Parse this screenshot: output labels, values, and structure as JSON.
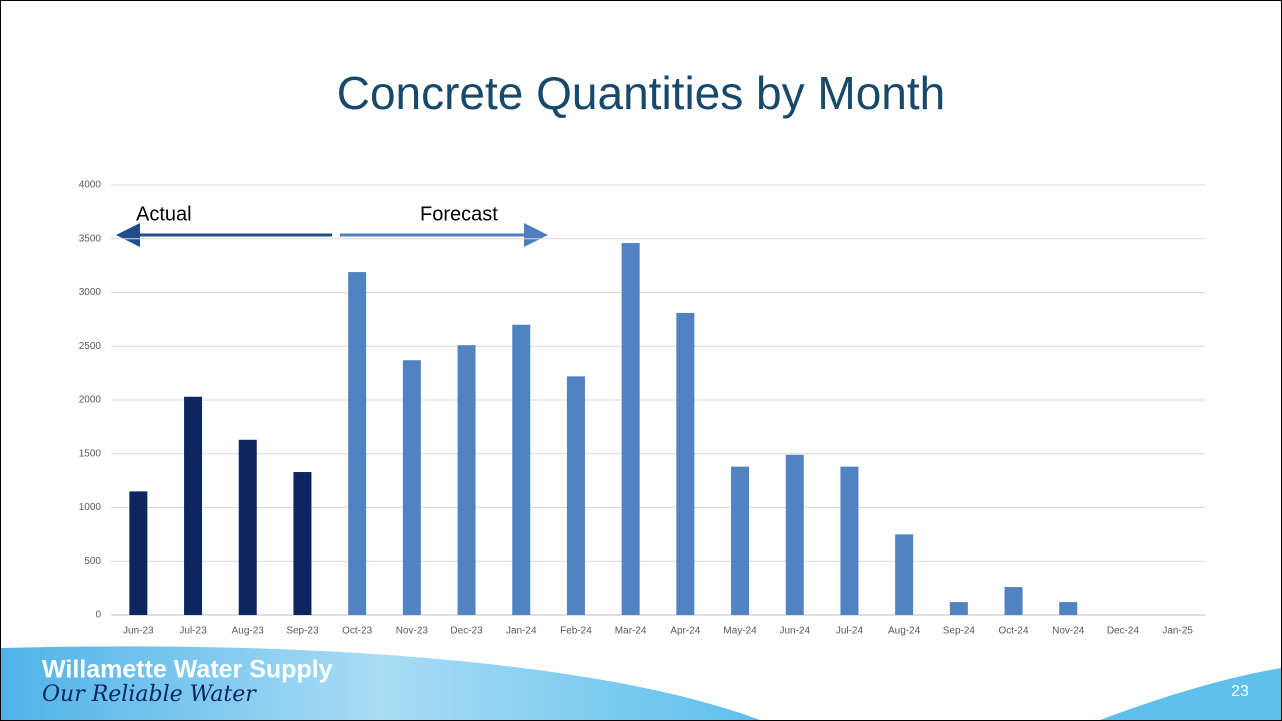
{
  "chart_data": {
    "type": "bar",
    "title": "Concrete Quantities by Month",
    "categories": [
      "Jun-23",
      "Jul-23",
      "Aug-23",
      "Sep-23",
      "Oct-23",
      "Nov-23",
      "Dec-23",
      "Jan-24",
      "Feb-24",
      "Mar-24",
      "Apr-24",
      "May-24",
      "Jun-24",
      "Jul-24",
      "Aug-24",
      "Sep-24",
      "Oct-24",
      "Nov-24",
      "Dec-24",
      "Jan-25"
    ],
    "series": [
      {
        "name": "Actual",
        "color": "#0d2660",
        "values": [
          1150,
          2030,
          1630,
          1330,
          null,
          null,
          null,
          null,
          null,
          null,
          null,
          null,
          null,
          null,
          null,
          null,
          null,
          null,
          null,
          null
        ]
      },
      {
        "name": "Forecast",
        "color": "#5182c2",
        "values": [
          null,
          null,
          null,
          null,
          3190,
          2370,
          2510,
          2700,
          2220,
          3460,
          2810,
          1380,
          1490,
          1380,
          750,
          120,
          260,
          120,
          0,
          0
        ]
      }
    ],
    "ylim": [
      0,
      4000
    ],
    "yticks": [
      0,
      500,
      1000,
      1500,
      2000,
      2500,
      3000,
      3500,
      4000
    ],
    "grid": true
  },
  "footer": {
    "organization": "Willamette Water Supply",
    "tagline": "Our Reliable Water",
    "page": "23"
  }
}
